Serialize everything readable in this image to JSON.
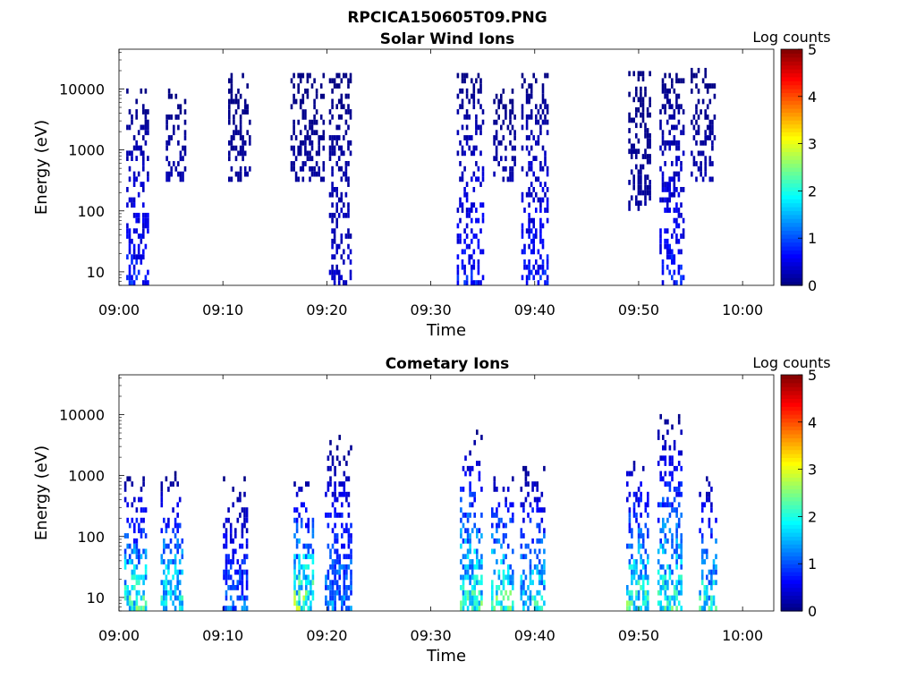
{
  "figure_title": "RPCICA150605T09.PNG",
  "chart_data": [
    {
      "type": "heatmap",
      "title": "Solar Wind Ions",
      "xlabel": "Time",
      "ylabel": "Energy (eV)",
      "y_scale": "log",
      "xlim": [
        "09:00",
        "10:03"
      ],
      "ylim": [
        6,
        45000
      ],
      "x_tick_labels": [
        "09:00",
        "09:10",
        "09:20",
        "09:30",
        "09:40",
        "09:50",
        "10:00"
      ],
      "y_tick_labels": [
        "10",
        "100",
        "1000",
        "10000"
      ],
      "colorbar": {
        "label": "Log counts",
        "range": [
          0,
          5
        ],
        "ticks": [
          "0",
          "1",
          "2",
          "3",
          "4",
          "5"
        ]
      },
      "bursts": [
        {
          "start": "09:00.7",
          "end": "09:02.8",
          "e_min": 6,
          "e_max": 9000,
          "peak_log_counts": 1.0
        },
        {
          "start": "09:04.5",
          "end": "09:06.3",
          "e_min": 300,
          "e_max": 9000,
          "peak_log_counts": 0.3
        },
        {
          "start": "09:10.5",
          "end": "09:12.5",
          "e_min": 300,
          "e_max": 17000,
          "peak_log_counts": 0.2
        },
        {
          "start": "09:16.5",
          "end": "09:19.8",
          "e_min": 300,
          "e_max": 17000,
          "peak_log_counts": 0.2
        },
        {
          "start": "09:20.2",
          "end": "09:22.2",
          "e_min": 6,
          "e_max": 17000,
          "peak_log_counts": 0.5
        },
        {
          "start": "09:32.5",
          "end": "09:35.0",
          "e_min": 6,
          "e_max": 18000,
          "peak_log_counts": 1.0
        },
        {
          "start": "09:36.0",
          "end": "09:38.0",
          "e_min": 300,
          "e_max": 9000,
          "peak_log_counts": 0.3
        },
        {
          "start": "09:38.7",
          "end": "09:41.2",
          "e_min": 6,
          "e_max": 17000,
          "peak_log_counts": 1.0
        },
        {
          "start": "09:49.0",
          "end": "09:51.0",
          "e_min": 100,
          "e_max": 17000,
          "peak_log_counts": 0.2
        },
        {
          "start": "09:52.0",
          "end": "09:54.3",
          "e_min": 6,
          "e_max": 17000,
          "peak_log_counts": 1.0
        },
        {
          "start": "09:55.0",
          "end": "09:57.3",
          "e_min": 300,
          "e_max": 20000,
          "peak_log_counts": 0.3
        }
      ]
    },
    {
      "type": "heatmap",
      "title": "Cometary Ions",
      "xlabel": "Time",
      "ylabel": "Energy (eV)",
      "y_scale": "log",
      "xlim": [
        "09:00",
        "10:03"
      ],
      "ylim": [
        6,
        45000
      ],
      "x_tick_labels": [
        "09:00",
        "09:10",
        "09:20",
        "09:30",
        "09:40",
        "09:50",
        "10:00"
      ],
      "y_tick_labels": [
        "10",
        "100",
        "1000",
        "10000"
      ],
      "colorbar": {
        "label": "Log counts",
        "range": [
          0,
          5
        ],
        "ticks": [
          "0",
          "1",
          "2",
          "3",
          "4",
          "5"
        ]
      },
      "bursts": [
        {
          "start": "09:00.5",
          "end": "09:02.6",
          "e_min": 6,
          "e_max": 1000,
          "peak_log_counts": 2.8
        },
        {
          "start": "09:04.0",
          "end": "09:06.2",
          "e_min": 6,
          "e_max": 1000,
          "peak_log_counts": 2.7
        },
        {
          "start": "09:10.0",
          "end": "09:12.4",
          "e_min": 6,
          "e_max": 900,
          "peak_log_counts": 1.5
        },
        {
          "start": "09:16.8",
          "end": "09:18.6",
          "e_min": 6,
          "e_max": 1000,
          "peak_log_counts": 3.1
        },
        {
          "start": "09:19.8",
          "end": "09:22.3",
          "e_min": 6,
          "e_max": 4000,
          "peak_log_counts": 1.8
        },
        {
          "start": "09:32.8",
          "end": "09:35.0",
          "e_min": 6,
          "e_max": 5000,
          "peak_log_counts": 2.8
        },
        {
          "start": "09:35.8",
          "end": "09:38.0",
          "e_min": 6,
          "e_max": 1300,
          "peak_log_counts": 2.9
        },
        {
          "start": "09:38.6",
          "end": "09:41.0",
          "e_min": 6,
          "e_max": 1500,
          "peak_log_counts": 2.5
        },
        {
          "start": "09:48.8",
          "end": "09:51.0",
          "e_min": 6,
          "e_max": 2500,
          "peak_log_counts": 2.8
        },
        {
          "start": "09:51.8",
          "end": "09:54.2",
          "e_min": 6,
          "e_max": 11000,
          "peak_log_counts": 2.6
        },
        {
          "start": "09:55.8",
          "end": "09:57.4",
          "e_min": 6,
          "e_max": 1200,
          "peak_log_counts": 2.6
        }
      ]
    }
  ]
}
